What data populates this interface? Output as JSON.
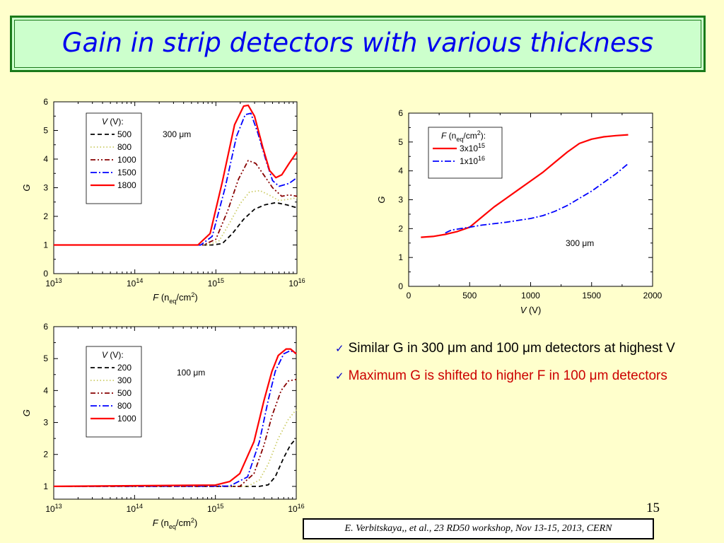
{
  "slide": {
    "title": "Gain in strip detectors with various thickness",
    "page_number": "15",
    "citation": "E. Verbitskaya,, et  al., 23 RD50 workshop, Nov 13-15, 2013, CERN",
    "bullets": [
      {
        "text": "Similar G in 300 μm and 100 μm detectors at highest V",
        "color": "#000000"
      },
      {
        "text": "Maximum G is shifted to higher F in 100 μm detectors",
        "color": "#cc0000"
      }
    ]
  },
  "chart_data": [
    {
      "type": "line",
      "ylabel": "G",
      "xlabel": "F (neq/cm2)",
      "xscale": "log",
      "xlim": [
        10000000000000.0,
        1e+16
      ],
      "ylim": [
        0,
        6
      ],
      "x_tick_labels": [
        "10^13",
        "10^14",
        "10^15",
        "10^16"
      ],
      "y_tick_labels": [
        "0",
        "1",
        "2",
        "3",
        "4",
        "5",
        "6"
      ],
      "annotation": "300 μm",
      "legend_title": "V (V):",
      "legend_position": "top-left",
      "series": [
        {
          "name": "500",
          "color": "#000000",
          "dash": "dash",
          "points": [
            [
              10000000000000.0,
              1
            ],
            [
              900000000000000.0,
              1
            ],
            [
              1200000000000000.0,
              1.05
            ],
            [
              1600000000000000.0,
              1.4
            ],
            [
              2200000000000000.0,
              1.9
            ],
            [
              3000000000000000.0,
              2.25
            ],
            [
              4000000000000000.0,
              2.4
            ],
            [
              5500000000000000.0,
              2.48
            ],
            [
              7500000000000000.0,
              2.4
            ],
            [
              1e+16,
              2.3
            ]
          ]
        },
        {
          "name": "800",
          "color": "#cccc66",
          "dash": "dot",
          "points": [
            [
              10000000000000.0,
              1
            ],
            [
              800000000000000.0,
              1
            ],
            [
              1100000000000000.0,
              1.15
            ],
            [
              1500000000000000.0,
              1.8
            ],
            [
              2000000000000000.0,
              2.45
            ],
            [
              2600000000000000.0,
              2.85
            ],
            [
              3500000000000000.0,
              2.9
            ],
            [
              4500000000000000.0,
              2.75
            ],
            [
              6000000000000000.0,
              2.55
            ],
            [
              8000000000000000.0,
              2.6
            ],
            [
              1e+16,
              2.65
            ]
          ]
        },
        {
          "name": "1000",
          "color": "#880000",
          "dash": "dashdotdot",
          "points": [
            [
              10000000000000.0,
              1
            ],
            [
              700000000000000.0,
              1
            ],
            [
              1000000000000000.0,
              1.2
            ],
            [
              1400000000000000.0,
              2.2
            ],
            [
              1900000000000000.0,
              3.3
            ],
            [
              2500000000000000.0,
              3.95
            ],
            [
              3100000000000000.0,
              3.85
            ],
            [
              4000000000000000.0,
              3.4
            ],
            [
              5000000000000000.0,
              3
            ],
            [
              6500000000000000.0,
              2.7
            ],
            [
              8000000000000000.0,
              2.75
            ],
            [
              1e+16,
              2.7
            ]
          ]
        },
        {
          "name": "1500",
          "color": "#0000ff",
          "dash": "dashdot",
          "points": [
            [
              10000000000000.0,
              1
            ],
            [
              650000000000000.0,
              1
            ],
            [
              900000000000000.0,
              1.3
            ],
            [
              1300000000000000.0,
              3
            ],
            [
              1800000000000000.0,
              4.8
            ],
            [
              2300000000000000.0,
              5.55
            ],
            [
              2700000000000000.0,
              5.6
            ],
            [
              3300000000000000.0,
              4.9
            ],
            [
              4200000000000000.0,
              3.9
            ],
            [
              5000000000000000.0,
              3.25
            ],
            [
              6000000000000000.0,
              3.05
            ],
            [
              8000000000000000.0,
              3.15
            ],
            [
              1e+16,
              3.35
            ]
          ]
        },
        {
          "name": "1800",
          "color": "#ff0000",
          "dash": "solid",
          "points": [
            [
              10000000000000.0,
              1
            ],
            [
              600000000000000.0,
              1
            ],
            [
              850000000000000.0,
              1.4
            ],
            [
              1200000000000000.0,
              3.2
            ],
            [
              1700000000000000.0,
              5.2
            ],
            [
              2200000000000000.0,
              5.85
            ],
            [
              2500000000000000.0,
              5.88
            ],
            [
              3000000000000000.0,
              5.5
            ],
            [
              3800000000000000.0,
              4.4
            ],
            [
              4600000000000000.0,
              3.6
            ],
            [
              5500000000000000.0,
              3.35
            ],
            [
              6500000000000000.0,
              3.45
            ],
            [
              8000000000000000.0,
              3.85
            ],
            [
              1e+16,
              4.25
            ]
          ]
        }
      ]
    },
    {
      "type": "line",
      "ylabel": "G",
      "xlabel": "V (V)",
      "xlim": [
        0,
        2000
      ],
      "ylim": [
        0,
        6
      ],
      "x_tick_labels": [
        "0",
        "500",
        "1000",
        "1500",
        "2000"
      ],
      "y_tick_labels": [
        "0",
        "1",
        "2",
        "3",
        "4",
        "5",
        "6"
      ],
      "annotation": "300 μm",
      "legend_title": "F (neq/cm2):",
      "legend_position": "top-left",
      "series": [
        {
          "name": "3x10^15",
          "color": "#ff0000",
          "dash": "solid",
          "points": [
            [
              100,
              1.7
            ],
            [
              200,
              1.73
            ],
            [
              300,
              1.8
            ],
            [
              400,
              1.9
            ],
            [
              500,
              2.05
            ],
            [
              600,
              2.4
            ],
            [
              700,
              2.75
            ],
            [
              800,
              3.05
            ],
            [
              900,
              3.35
            ],
            [
              1000,
              3.65
            ],
            [
              1100,
              3.95
            ],
            [
              1200,
              4.3
            ],
            [
              1300,
              4.65
            ],
            [
              1400,
              4.95
            ],
            [
              1500,
              5.1
            ],
            [
              1600,
              5.18
            ],
            [
              1700,
              5.22
            ],
            [
              1800,
              5.25
            ]
          ]
        },
        {
          "name": "1x10^16",
          "color": "#0000ff",
          "dash": "dashdot",
          "points": [
            [
              300,
              1.85
            ],
            [
              350,
              1.95
            ],
            [
              500,
              2.05
            ],
            [
              600,
              2.12
            ],
            [
              800,
              2.22
            ],
            [
              1000,
              2.35
            ],
            [
              1100,
              2.45
            ],
            [
              1200,
              2.6
            ],
            [
              1300,
              2.8
            ],
            [
              1400,
              3.05
            ],
            [
              1500,
              3.3
            ],
            [
              1600,
              3.6
            ],
            [
              1700,
              3.9
            ],
            [
              1800,
              4.25
            ]
          ]
        }
      ]
    },
    {
      "type": "line",
      "ylabel": "G",
      "xlabel": "F (neq/cm2)",
      "xscale": "log",
      "xlim": [
        10000000000000.0,
        1e+16
      ],
      "ylim": [
        0.6,
        6
      ],
      "x_tick_labels": [
        "10^13",
        "10^14",
        "10^15",
        "10^16"
      ],
      "y_tick_labels": [
        "1",
        "2",
        "3",
        "4",
        "5",
        "6"
      ],
      "annotation": "100 μm",
      "legend_title": "V (V):",
      "legend_position": "top-left",
      "series": [
        {
          "name": "200",
          "color": "#000000",
          "dash": "dash",
          "points": [
            [
              10000000000000.0,
              1
            ],
            [
              3500000000000000.0,
              1
            ],
            [
              4500000000000000.0,
              1.05
            ],
            [
              5500000000000000.0,
              1.3
            ],
            [
              7000000000000000.0,
              1.9
            ],
            [
              8500000000000000.0,
              2.3
            ],
            [
              1e+16,
              2.5
            ]
          ]
        },
        {
          "name": "300",
          "color": "#cccc66",
          "dash": "dot",
          "points": [
            [
              10000000000000.0,
              1
            ],
            [
              2500000000000000.0,
              1
            ],
            [
              3500000000000000.0,
              1.2
            ],
            [
              4500000000000000.0,
              1.7
            ],
            [
              6000000000000000.0,
              2.5
            ],
            [
              8000000000000000.0,
              3.1
            ],
            [
              1e+16,
              3.4
            ]
          ]
        },
        {
          "name": "500",
          "color": "#880000",
          "dash": "dashdotdot",
          "points": [
            [
              10000000000000.0,
              1
            ],
            [
              2000000000000000.0,
              1
            ],
            [
              3000000000000000.0,
              1.4
            ],
            [
              4000000000000000.0,
              2.3
            ],
            [
              5000000000000000.0,
              3.2
            ],
            [
              6500000000000000.0,
              4
            ],
            [
              8000000000000000.0,
              4.3
            ],
            [
              1e+16,
              4.35
            ]
          ]
        },
        {
          "name": "800",
          "color": "#0000ff",
          "dash": "dashdot",
          "points": [
            [
              10000000000000.0,
              1
            ],
            [
              1500000000000000.0,
              1.01
            ],
            [
              2500000000000000.0,
              1.3
            ],
            [
              3500000000000000.0,
              2.4
            ],
            [
              4500000000000000.0,
              3.7
            ],
            [
              5500000000000000.0,
              4.6
            ],
            [
              7000000000000000.0,
              5.15
            ],
            [
              8500000000000000.0,
              5.25
            ],
            [
              1e+16,
              5.15
            ]
          ]
        },
        {
          "name": "1000",
          "color": "#ff0000",
          "dash": "solid",
          "points": [
            [
              10000000000000.0,
              1
            ],
            [
              1000000000000000.0,
              1.04
            ],
            [
              1500000000000000.0,
              1.15
            ],
            [
              2000000000000000.0,
              1.4
            ],
            [
              3000000000000000.0,
              2.4
            ],
            [
              4000000000000000.0,
              3.7
            ],
            [
              5000000000000000.0,
              4.6
            ],
            [
              6000000000000000.0,
              5.1
            ],
            [
              7500000000000000.0,
              5.3
            ],
            [
              8500000000000000.0,
              5.3
            ],
            [
              1e+16,
              5.15
            ]
          ]
        }
      ]
    }
  ]
}
